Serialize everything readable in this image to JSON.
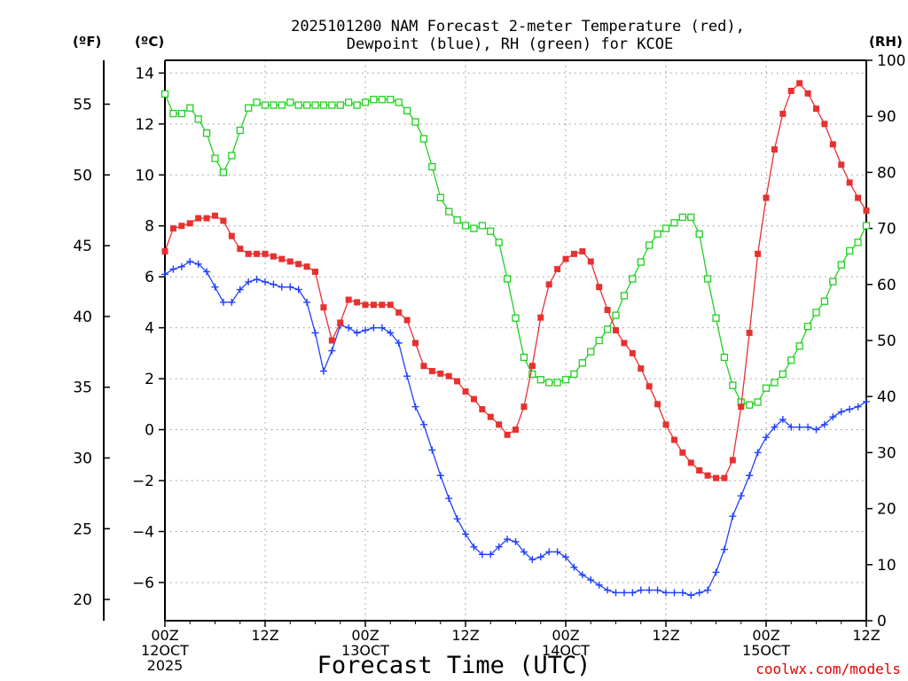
{
  "header": {
    "title_line1": "2025101200 NAM Forecast 2-meter Temperature (red),",
    "title_line2": "Dewpoint (blue), RH (green) for KCOE"
  },
  "axis_units": {
    "fahrenheit": "(ºF)",
    "celsius": "(ºC)",
    "rh": "(RH)"
  },
  "footer": {
    "xlabel": "Forecast Time (UTC)",
    "credit": "coolwx.com/models"
  },
  "chart_data": {
    "type": "line",
    "title": "2025101200 NAM Forecast 2-meter Temperature (red), Dewpoint (blue), RH (green) for KCOE",
    "xlabel": "Forecast Time (UTC)",
    "x_hours": {
      "start": 0,
      "end": 84,
      "step": 1
    },
    "xlim": [
      0,
      84
    ],
    "x_ticks": [
      {
        "hour": 0,
        "lines": [
          "00Z",
          "12OCT",
          "2025"
        ]
      },
      {
        "hour": 12,
        "lines": [
          "12Z"
        ]
      },
      {
        "hour": 24,
        "lines": [
          "00Z",
          "13OCT"
        ]
      },
      {
        "hour": 36,
        "lines": [
          "12Z"
        ]
      },
      {
        "hour": 48,
        "lines": [
          "00Z",
          "14OCT"
        ]
      },
      {
        "hour": 60,
        "lines": [
          "12Z"
        ]
      },
      {
        "hour": 72,
        "lines": [
          "00Z",
          "15OCT"
        ]
      },
      {
        "hour": 84,
        "lines": [
          "12Z"
        ]
      }
    ],
    "y_celsius": {
      "label": "(ºC)",
      "lim": [
        -7.5,
        14.5
      ],
      "ticks": [
        "14",
        "12",
        "10",
        "8",
        "6",
        "4",
        "2",
        "0",
        "−2",
        "−4",
        "−6"
      ],
      "tick_values": [
        14,
        12,
        10,
        8,
        6,
        4,
        2,
        0,
        -2,
        -4,
        -6
      ]
    },
    "y_fahrenheit": {
      "label": "(ºF)",
      "ticks": [
        "55",
        "50",
        "45",
        "40",
        "35",
        "30",
        "25",
        "20"
      ],
      "tick_values": [
        55,
        50,
        45,
        40,
        35,
        30,
        25,
        20
      ]
    },
    "y_rh": {
      "label": "(RH)",
      "lim": [
        0,
        100
      ],
      "ticks": [
        "100",
        "90",
        "80",
        "70",
        "60",
        "50",
        "40",
        "30",
        "20",
        "10",
        "0"
      ],
      "tick_values": [
        100,
        90,
        80,
        70,
        60,
        50,
        40,
        30,
        20,
        10,
        0
      ]
    },
    "grid": true,
    "series": [
      {
        "name": "2-meter Temperature",
        "units": "C",
        "color": "#e83030",
        "marker": "filled-square",
        "values": [
          7.0,
          7.9,
          8.0,
          8.1,
          8.3,
          8.3,
          8.4,
          8.2,
          7.6,
          7.1,
          6.9,
          6.9,
          6.9,
          6.8,
          6.7,
          6.6,
          6.5,
          6.4,
          6.2,
          4.8,
          3.5,
          4.2,
          5.1,
          5.0,
          4.9,
          4.9,
          4.9,
          4.9,
          4.6,
          4.3,
          3.4,
          2.5,
          2.3,
          2.2,
          2.1,
          1.9,
          1.5,
          1.2,
          0.8,
          0.5,
          0.2,
          -0.2,
          0.0,
          0.9,
          2.5,
          4.4,
          5.7,
          6.3,
          6.7,
          6.9,
          7.0,
          6.6,
          5.6,
          4.7,
          3.9,
          3.4,
          3.0,
          2.4,
          1.7,
          1.0,
          0.2,
          -0.4,
          -0.9,
          -1.3,
          -1.6,
          -1.8,
          -1.9,
          -1.9,
          -1.2,
          0.9,
          3.8,
          6.9,
          9.1,
          11.0,
          12.4,
          13.3,
          13.6,
          13.2,
          12.6,
          12.0,
          11.2,
          10.4,
          9.7,
          9.1,
          8.6
        ]
      },
      {
        "name": "Dewpoint",
        "units": "C",
        "color": "#2040ff",
        "marker": "plus",
        "values": [
          6.1,
          6.3,
          6.4,
          6.6,
          6.5,
          6.2,
          5.6,
          5.0,
          5.0,
          5.5,
          5.8,
          5.9,
          5.8,
          5.7,
          5.6,
          5.6,
          5.5,
          5.0,
          3.8,
          2.3,
          3.1,
          4.1,
          4.0,
          3.8,
          3.9,
          4.0,
          4.0,
          3.8,
          3.4,
          2.1,
          0.9,
          0.2,
          -0.8,
          -1.8,
          -2.7,
          -3.5,
          -4.1,
          -4.6,
          -4.9,
          -4.9,
          -4.6,
          -4.3,
          -4.4,
          -4.8,
          -5.1,
          -5.0,
          -4.8,
          -4.8,
          -5.0,
          -5.4,
          -5.7,
          -5.9,
          -6.1,
          -6.3,
          -6.4,
          -6.4,
          -6.4,
          -6.3,
          -6.3,
          -6.3,
          -6.4,
          -6.4,
          -6.4,
          -6.5,
          -6.4,
          -6.3,
          -5.6,
          -4.7,
          -3.4,
          -2.6,
          -1.8,
          -0.9,
          -0.3,
          0.1,
          0.4,
          0.1,
          0.1,
          0.1,
          0.0,
          0.2,
          0.5,
          0.7,
          0.8,
          0.9,
          1.1
        ]
      },
      {
        "name": "Relative Humidity",
        "units": "%",
        "color": "#20d020",
        "marker": "open-square",
        "values": [
          94.0,
          90.5,
          90.5,
          91.5,
          89.5,
          87.0,
          82.5,
          80.0,
          83.0,
          87.5,
          91.5,
          92.5,
          92.0,
          92.0,
          92.0,
          92.5,
          92.0,
          92.0,
          92.0,
          92.0,
          92.0,
          92.0,
          92.5,
          92.0,
          92.5,
          93.0,
          93.0,
          93.0,
          92.5,
          91.0,
          89.0,
          86.0,
          81.0,
          75.5,
          73.0,
          71.5,
          70.5,
          70.0,
          70.5,
          69.5,
          67.5,
          61.0,
          54.0,
          47.0,
          44.0,
          43.0,
          42.5,
          42.5,
          43.0,
          44.0,
          46.0,
          48.0,
          50.0,
          52.0,
          54.5,
          58.0,
          61.0,
          64.0,
          67.0,
          69.0,
          70.0,
          71.0,
          72.0,
          72.0,
          69.0,
          61.0,
          54.0,
          47.0,
          42.0,
          39.0,
          38.5,
          39.0,
          41.5,
          42.5,
          44.0,
          46.5,
          49.0,
          52.5,
          55.0,
          57.0,
          60.5,
          63.5,
          66.0,
          67.5,
          70.5
        ]
      }
    ]
  }
}
